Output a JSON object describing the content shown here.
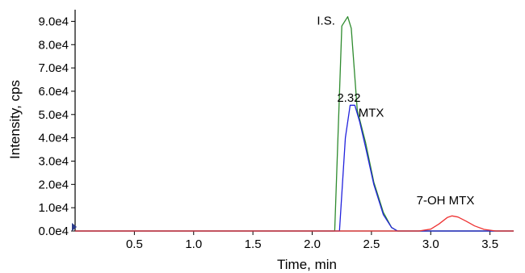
{
  "chart_data": {
    "type": "line",
    "xlabel": "Time, min",
    "ylabel": "Intensity, cps",
    "xlim": [
      0,
      3.7
    ],
    "ylim": [
      0,
      95000
    ],
    "x_ticks": [
      "0.5",
      "1.0",
      "1.5",
      "2.0",
      "2.5",
      "3.0",
      "3.5"
    ],
    "x_tick_values": [
      0.5,
      1.0,
      1.5,
      2.0,
      2.5,
      3.0,
      3.5
    ],
    "y_ticks": [
      "0.0e4",
      "1.0e4",
      "2.0e4",
      "3.0e4",
      "4.0e4",
      "5.0e4",
      "6.0e4",
      "7.0e4",
      "8.0e4",
      "9.0e4"
    ],
    "y_tick_values": [
      0,
      10000,
      20000,
      30000,
      40000,
      50000,
      60000,
      70000,
      80000,
      90000
    ],
    "grid": false,
    "series": [
      {
        "color": "#2e8b2e",
        "x": [
          0.0,
          2.19,
          2.25,
          2.3,
          2.33,
          2.38,
          2.45,
          2.52,
          2.6,
          2.67,
          2.72,
          3.7
        ],
        "y": [
          0,
          0,
          88000,
          92000,
          87000,
          52000,
          38000,
          21000,
          8000,
          1500,
          0,
          0
        ]
      },
      {
        "color": "#2222dd",
        "x": [
          0.0,
          2.23,
          2.28,
          2.32,
          2.36,
          2.4,
          2.45,
          2.52,
          2.6,
          2.67,
          2.72,
          3.7
        ],
        "y": [
          0,
          0,
          40000,
          54000,
          54000,
          47000,
          36000,
          20000,
          7000,
          1500,
          0,
          0
        ]
      },
      {
        "color": "#ee3333",
        "x": [
          0.0,
          2.9,
          3.0,
          3.07,
          3.14,
          3.18,
          3.23,
          3.3,
          3.37,
          3.45,
          3.55,
          3.7
        ],
        "y": [
          0,
          0,
          800,
          3000,
          5800,
          6500,
          6000,
          4200,
          2200,
          700,
          0,
          0
        ]
      }
    ],
    "annotations": [
      {
        "text": "I.S.",
        "x": 2.04,
        "y": 88500
      },
      {
        "text": "2.32",
        "x": 2.21,
        "y": 55500
      },
      {
        "text": "MTX",
        "x": 2.39,
        "y": 49000
      },
      {
        "text": "7-OH MTX",
        "x": 2.88,
        "y": 11500
      }
    ]
  }
}
